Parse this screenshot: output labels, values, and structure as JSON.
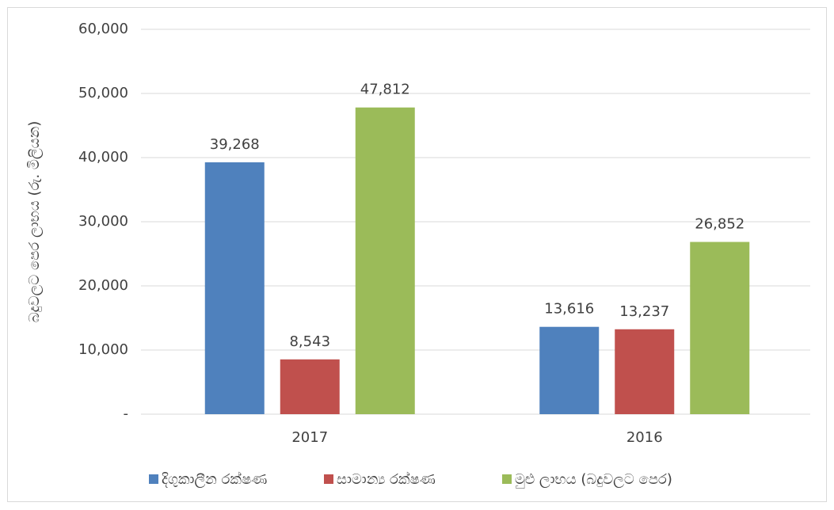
{
  "chart_data": {
    "type": "bar",
    "y_label": "බදුවලට පෙර ලාභය (රු. මිලියන)",
    "categories": [
      "2017",
      "2016"
    ],
    "series": [
      {
        "name": "දිගුකාලීන රක්ෂණ",
        "color": "#4f81bd",
        "values": [
          39268,
          13616
        ],
        "value_labels": [
          "39,268",
          "13,616"
        ]
      },
      {
        "name": "සාමාන්‍ය රක්ෂණ",
        "color": "#c0504d",
        "values": [
          8543,
          13237
        ],
        "value_labels": [
          "8,543",
          "13,237"
        ]
      },
      {
        "name": "මුළු ලාභය (බදුවලට පෙර)",
        "color": "#9bbb59",
        "values": [
          47812,
          26852
        ],
        "value_labels": [
          "47,812",
          "26,852"
        ]
      }
    ],
    "ylim": [
      0,
      60000
    ],
    "yticks": [
      {
        "value": 0,
        "label": "-"
      },
      {
        "value": 10000,
        "label": "10,000"
      },
      {
        "value": 20000,
        "label": "20,000"
      },
      {
        "value": 30000,
        "label": "30,000"
      },
      {
        "value": 40000,
        "label": "40,000"
      },
      {
        "value": 50000,
        "label": "50,000"
      },
      {
        "value": 60000,
        "label": "60,000"
      }
    ],
    "grid": true,
    "legend": "bottom"
  }
}
